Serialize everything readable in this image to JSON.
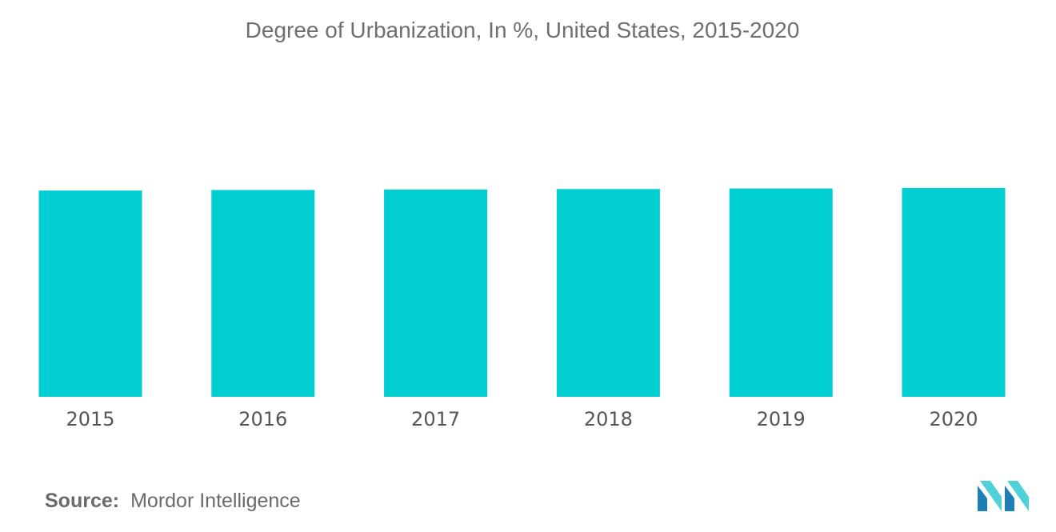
{
  "chart_data": {
    "type": "bar",
    "title": "Degree of Urbanization, In %, United States, 2015-2020",
    "categories": [
      "2015",
      "2016",
      "2017",
      "2018",
      "2019",
      "2020"
    ],
    "values": [
      81.7,
      81.9,
      82.1,
      82.3,
      82.5,
      82.7
    ],
    "ylim": [
      0,
      82.7
    ],
    "xlabel": "",
    "ylabel": "",
    "grid": false,
    "bar_color": "#00ced1"
  },
  "footer": {
    "source_label": "Source:",
    "source_text": "Mordor Intelligence"
  },
  "brand": {
    "logo_icon": "mordor-intelligence-logo",
    "logo_color_dark": "#1e7fb4",
    "logo_color_light": "#4fd1d9"
  }
}
